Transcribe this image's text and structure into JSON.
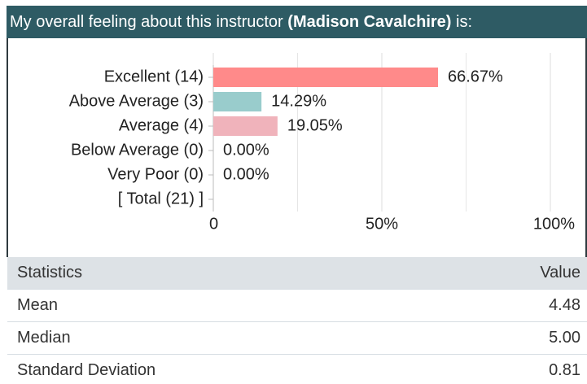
{
  "header": {
    "prefix": "My overall feeling about this instructor",
    "name": "(Madison Cavalchire)",
    "suffix": "is:"
  },
  "chart_data": {
    "type": "hbar",
    "categories": [
      "Excellent (14)",
      "Above Average (3)",
      "Average (4)",
      "Below Average (0)",
      "Very Poor (0)",
      "[ Total (21) ]"
    ],
    "values": [
      66.67,
      14.29,
      19.05,
      0,
      0,
      null
    ],
    "value_labels": [
      "66.67%",
      "14.29%",
      "19.05%",
      "0.00%",
      "0.00%",
      null
    ],
    "colors": [
      "#ff8a8a",
      "#99cccc",
      "#f0b3bb"
    ],
    "xlim": [
      0,
      100
    ],
    "xticks": [
      0,
      {
        "value": 50,
        "label": "50%"
      },
      {
        "value": 100,
        "label": "100%"
      }
    ],
    "xminorticks": [
      25,
      75
    ],
    "grid": true
  },
  "table": {
    "header": [
      "Statistics",
      "Value"
    ],
    "rows": [
      [
        "Mean",
        "4.48"
      ],
      [
        "Median",
        "5.00"
      ],
      [
        "Standard Deviation",
        "0.81"
      ]
    ]
  }
}
